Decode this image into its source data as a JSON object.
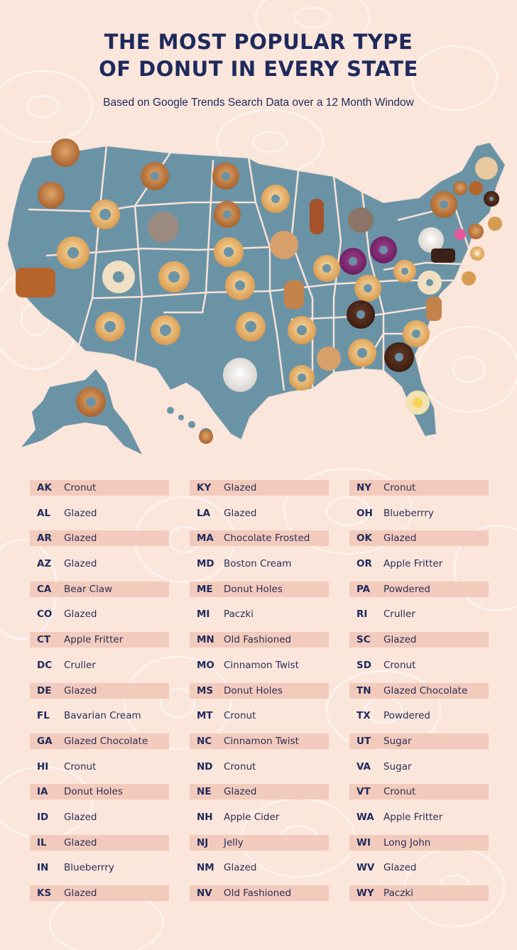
{
  "header": {
    "title_line1": "THE MOST POPULAR TYPE",
    "title_line2": "OF DONUT IN EVERY STATE",
    "subtitle": "Based on Google Trends Search Data over a 12 Month Window"
  },
  "colors": {
    "background": "#fbe6dc",
    "map_fill": "#6b93a6",
    "title": "#1f2a5c",
    "row_shade": "#f3cbbd"
  },
  "legend_columns": [
    [
      {
        "code": "AK",
        "donut": "Cronut"
      },
      {
        "code": "AL",
        "donut": "Glazed"
      },
      {
        "code": "AR",
        "donut": "Glazed"
      },
      {
        "code": "AZ",
        "donut": "Glazed"
      },
      {
        "code": "CA",
        "donut": "Bear Claw"
      },
      {
        "code": "CO",
        "donut": "Glazed"
      },
      {
        "code": "CT",
        "donut": "Apple Fritter"
      },
      {
        "code": "DC",
        "donut": "Cruller"
      },
      {
        "code": "DE",
        "donut": "Glazed"
      },
      {
        "code": "FL",
        "donut": "Bavarian Cream"
      },
      {
        "code": "GA",
        "donut": "Glazed Chocolate"
      },
      {
        "code": "HI",
        "donut": "Cronut"
      },
      {
        "code": "IA",
        "donut": "Donut Holes"
      },
      {
        "code": "ID",
        "donut": "Glazed"
      },
      {
        "code": "IL",
        "donut": "Glazed"
      },
      {
        "code": "IN",
        "donut": "Blueberrry"
      },
      {
        "code": "KS",
        "donut": "Glazed"
      }
    ],
    [
      {
        "code": "KY",
        "donut": "Glazed"
      },
      {
        "code": "LA",
        "donut": "Glazed"
      },
      {
        "code": "MA",
        "donut": "Chocolate Frosted"
      },
      {
        "code": "MD",
        "donut": "Boston Cream"
      },
      {
        "code": "ME",
        "donut": "Donut Holes"
      },
      {
        "code": "MI",
        "donut": "Paczki"
      },
      {
        "code": "MN",
        "donut": "Old Fashioned"
      },
      {
        "code": "MO",
        "donut": "Cinnamon Twist"
      },
      {
        "code": "MS",
        "donut": "Donut Holes"
      },
      {
        "code": "MT",
        "donut": "Cronut"
      },
      {
        "code": "NC",
        "donut": "Cinnamon Twist"
      },
      {
        "code": "ND",
        "donut": "Cronut"
      },
      {
        "code": "NE",
        "donut": "Glazed"
      },
      {
        "code": "NH",
        "donut": "Apple Cider"
      },
      {
        "code": "NJ",
        "donut": "Jelly"
      },
      {
        "code": "NM",
        "donut": "Glazed"
      },
      {
        "code": "NV",
        "donut": "Old Fashioned"
      }
    ],
    [
      {
        "code": "NY",
        "donut": "Cronut"
      },
      {
        "code": "OH",
        "donut": "Blueberrry"
      },
      {
        "code": "OK",
        "donut": "Glazed"
      },
      {
        "code": "OR",
        "donut": "Apple Fritter"
      },
      {
        "code": "PA",
        "donut": "Powdered"
      },
      {
        "code": "RI",
        "donut": "Cruller"
      },
      {
        "code": "SC",
        "donut": "Glazed"
      },
      {
        "code": "SD",
        "donut": "Cronut"
      },
      {
        "code": "TN",
        "donut": "Glazed Chocolate"
      },
      {
        "code": "TX",
        "donut": "Powdered"
      },
      {
        "code": "UT",
        "donut": "Sugar"
      },
      {
        "code": "VA",
        "donut": "Sugar"
      },
      {
        "code": "VT",
        "donut": "Cronut"
      },
      {
        "code": "WA",
        "donut": "Apple Fritter"
      },
      {
        "code": "WI",
        "donut": "Long John"
      },
      {
        "code": "WV",
        "donut": "Glazed"
      },
      {
        "code": "WY",
        "donut": "Paczki"
      }
    ]
  ]
}
